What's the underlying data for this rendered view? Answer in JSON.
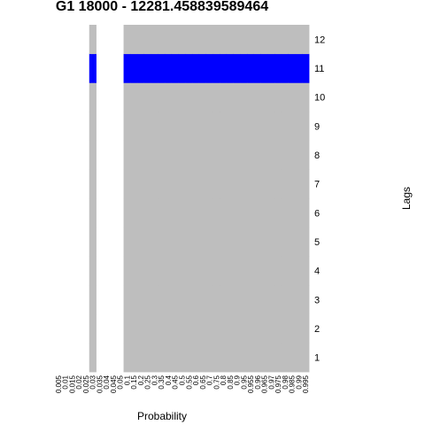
{
  "chart_data": {
    "type": "heatmap",
    "title": "G1 18000 - 12281.458839589464",
    "xlabel": "Probability",
    "ylabel": "Lags",
    "x_ticks": [
      "0.005",
      "0.01",
      "0.015",
      "0.02",
      "0.025",
      "0.03",
      "0.035",
      "0.04",
      "0.045",
      "0.05",
      "0.1",
      "0.15",
      "0.2",
      "0.25",
      "0.3",
      "0.35",
      "0.4",
      "0.45",
      "0.5",
      "0.55",
      "0.6",
      "0.65",
      "0.7",
      "0.75",
      "0.8",
      "0.85",
      "0.9",
      "0.95",
      "0.955",
      "0.96",
      "0.965",
      "0.97",
      "0.975",
      "0.98",
      "0.985",
      "0.99",
      "0.995"
    ],
    "y_ticks": [
      "1",
      "2",
      "3",
      "4",
      "5",
      "6",
      "7",
      "8",
      "9",
      "10",
      "11",
      "12"
    ],
    "cell_states": [
      "absent",
      "significant",
      "not_significant"
    ],
    "colors": {
      "absent": "#ffffff",
      "not_significant": "#bebebe",
      "significant": "#0000ff"
    },
    "column_presence": [
      0,
      0,
      0,
      0,
      0,
      1,
      0,
      0,
      0,
      0,
      1,
      1,
      1,
      1,
      1,
      1,
      1,
      1,
      1,
      1,
      1,
      1,
      1,
      1,
      1,
      1,
      1,
      1,
      1,
      1,
      1,
      1,
      1,
      1,
      1,
      1,
      1
    ],
    "significant_lags": [
      11
    ],
    "grid": false
  }
}
